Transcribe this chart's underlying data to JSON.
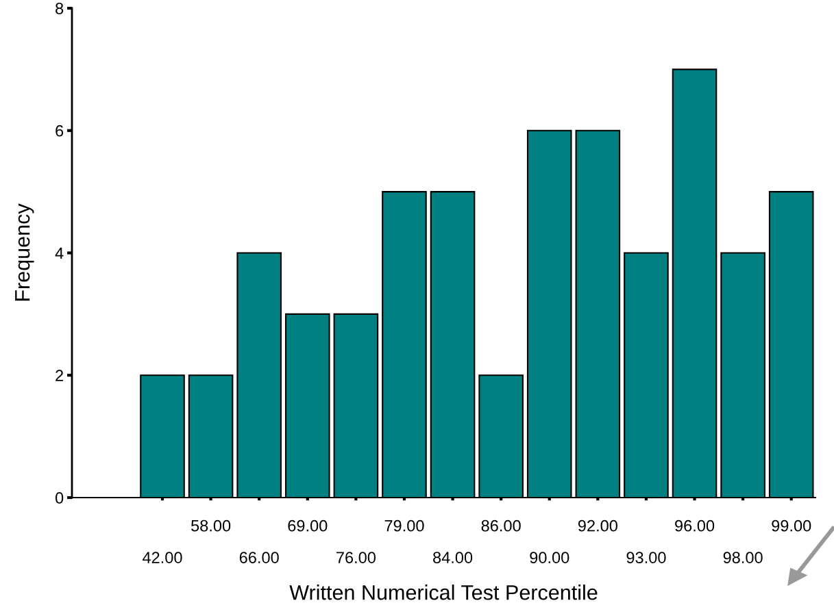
{
  "chart_data": {
    "type": "bar",
    "xlabel": "Written Numerical Test Percentile",
    "ylabel": "Frequency",
    "categories": [
      "42.00",
      "58.00",
      "66.00",
      "69.00",
      "76.00",
      "79.00",
      "84.00",
      "86.00",
      "90.00",
      "92.00",
      "93.00",
      "96.00",
      "98.00",
      "99.00"
    ],
    "values": [
      2,
      2,
      4,
      3,
      3,
      5,
      5,
      2,
      6,
      6,
      4,
      7,
      4,
      5
    ],
    "color": "#008080",
    "ylim": [
      0,
      8
    ],
    "yticks": [
      0,
      2,
      4,
      6,
      8
    ],
    "grid": false,
    "legend": false
  }
}
